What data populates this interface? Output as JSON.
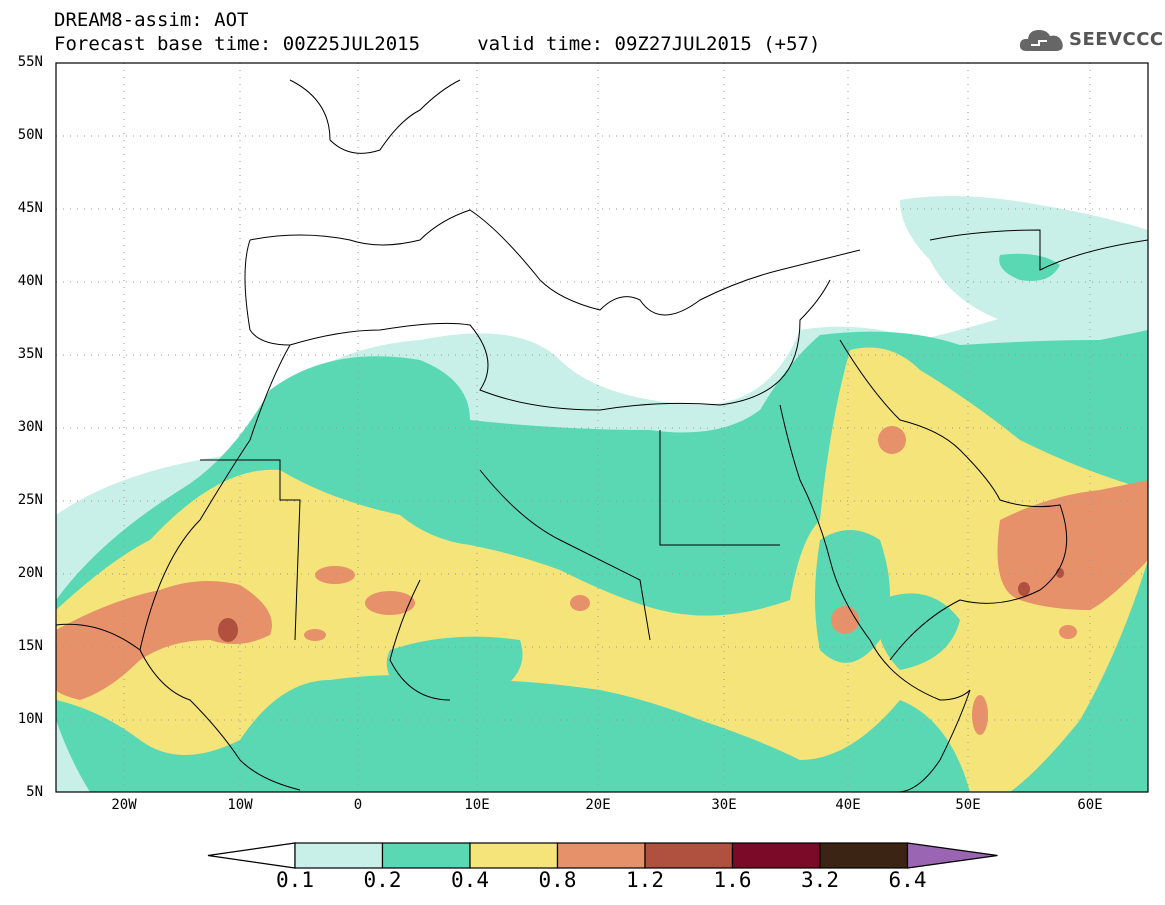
{
  "title": {
    "line1": "DREAM8-assim: AOT",
    "line2": "Forecast base time: 00Z25JUL2015     valid time: 09Z27JUL2015 (+57)"
  },
  "logo": {
    "text": "SEEVCCC",
    "icon": "cloud-icon"
  },
  "map": {
    "lat_labels": [
      "55N",
      "50N",
      "45N",
      "40N",
      "35N",
      "30N",
      "25N",
      "20N",
      "15N",
      "10N",
      "5N"
    ],
    "lon_labels": [
      "20W",
      "10W",
      "0",
      "10E",
      "20E",
      "30E",
      "40E",
      "50E",
      "60E"
    ]
  },
  "colorbar": {
    "labels": [
      "0.1",
      "0.2",
      "0.4",
      "0.8",
      "1.2",
      "1.6",
      "3.2",
      "6.4"
    ],
    "colors": [
      "#ffffff",
      "#c8f0e8",
      "#5ad8b4",
      "#f5e47a",
      "#e6916a",
      "#b0503e",
      "#7a0a28",
      "#3c2414",
      "#9a66b4"
    ]
  }
}
